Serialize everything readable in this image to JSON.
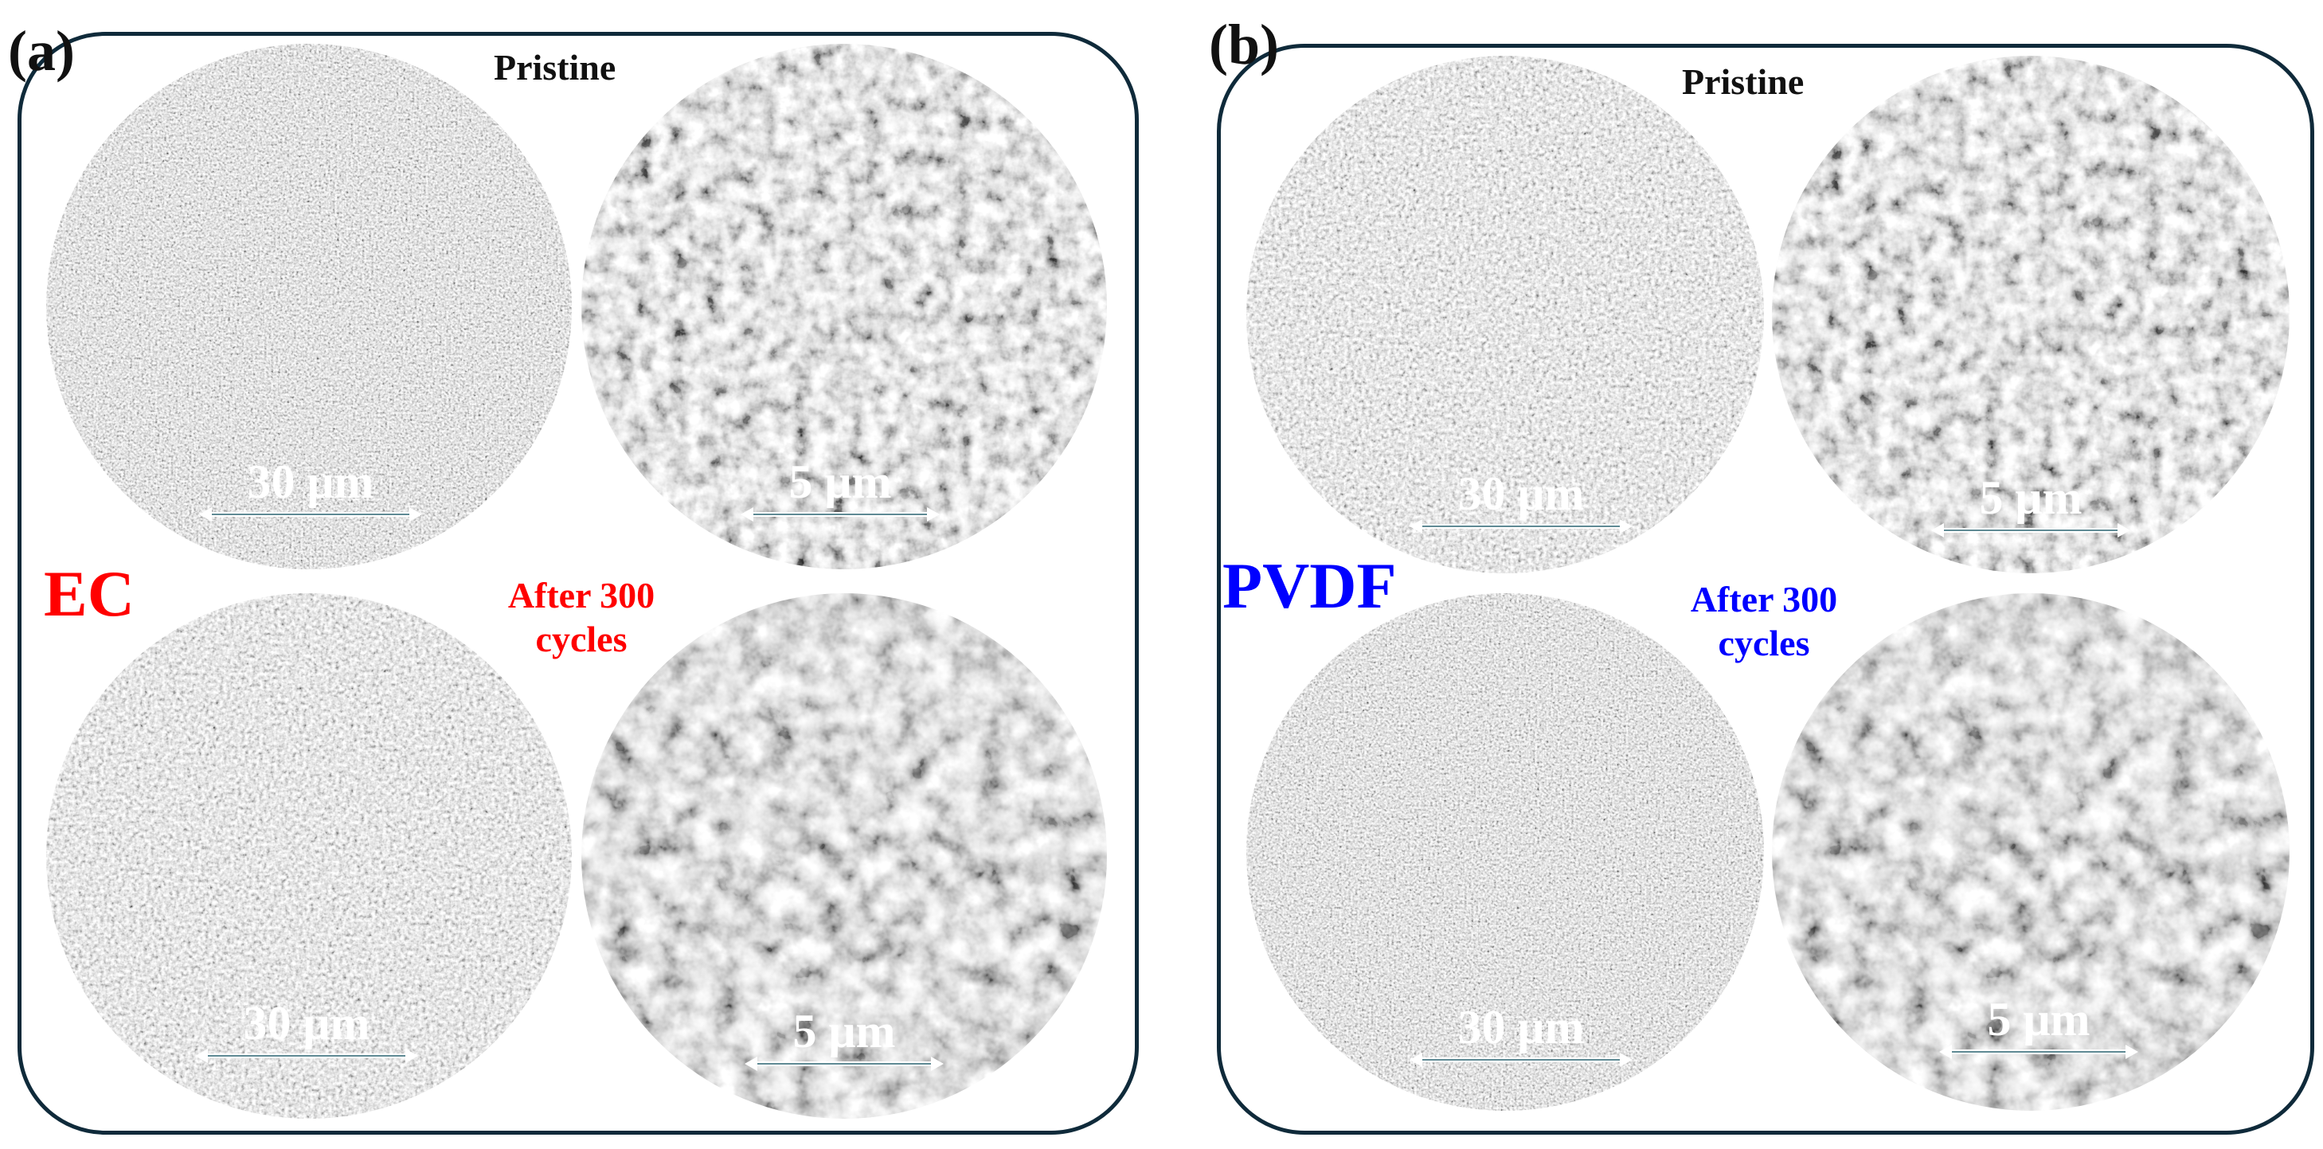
{
  "panels": [
    {
      "letter": "(a)",
      "pristine_label": "Pristine",
      "group": "EC",
      "after_line1": "After 300",
      "after_line2": "cycles",
      "color": "#ff0000",
      "scale_low": "30 μm",
      "scale_high": "5 μm"
    },
    {
      "letter": "(b)",
      "pristine_label": "Pristine",
      "group": "PVDF",
      "after_line1": "After 300",
      "after_line2": "cycles",
      "color": "#0000ff",
      "scale_low": "30 μm",
      "scale_high": "5 μm"
    }
  ]
}
